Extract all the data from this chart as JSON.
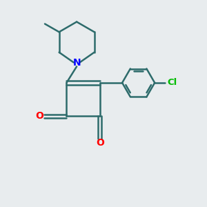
{
  "background_color": "#e8ecee",
  "bond_color": "#2d6b6b",
  "bond_width": 1.8,
  "N_color": "#0000ff",
  "O_color": "#ff0000",
  "Cl_color": "#00bb00",
  "figsize": [
    3.0,
    3.0
  ],
  "dpi": 100,
  "xlim": [
    0,
    10
  ],
  "ylim": [
    0,
    10
  ]
}
